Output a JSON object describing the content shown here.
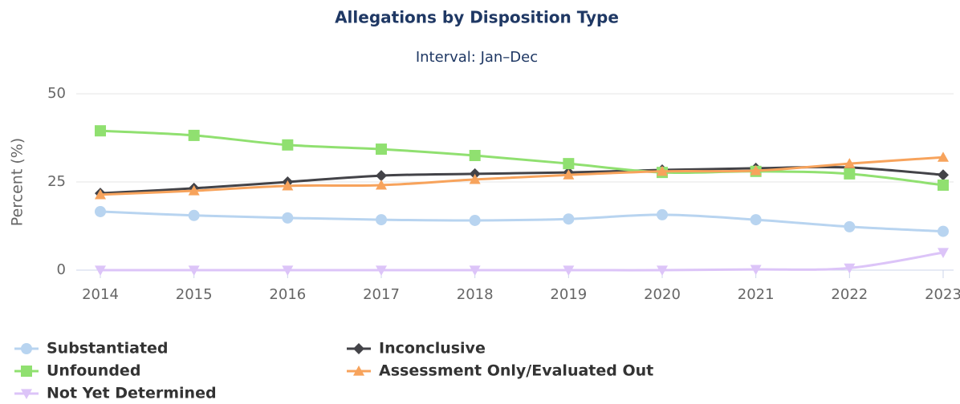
{
  "chart_data": {
    "type": "line",
    "title": "Allegations by Disposition Type",
    "subtitle": "Interval: Jan–Dec",
    "y_label": "Percent (%)",
    "categories": [
      "2014",
      "2015",
      "2016",
      "2017",
      "2018",
      "2019",
      "2020",
      "2021",
      "2022",
      "2023"
    ],
    "ylim": [
      0,
      50
    ],
    "yticks": [
      0,
      25,
      50
    ],
    "grid": true,
    "series": [
      {
        "name": "Substantiated",
        "color": "#b8d4f0",
        "marker": "circle",
        "values": [
          16.6,
          15.5,
          14.8,
          14.3,
          14.1,
          14.5,
          15.7,
          14.3,
          12.3,
          11.0
        ]
      },
      {
        "name": "Inconclusive",
        "color": "#434348",
        "marker": "diamond",
        "values": [
          21.8,
          23.2,
          25.0,
          26.8,
          27.3,
          27.7,
          28.4,
          28.9,
          29.1,
          27.0
        ]
      },
      {
        "name": "Unfounded",
        "color": "#90e070",
        "marker": "square",
        "values": [
          39.5,
          38.2,
          35.5,
          34.3,
          32.5,
          30.2,
          27.7,
          28.0,
          27.3,
          24.1
        ]
      },
      {
        "name": "Assessment Only/Evaluated Out",
        "color": "#f7a35c",
        "marker": "triangle",
        "values": [
          21.4,
          22.5,
          23.9,
          24.1,
          25.7,
          27.0,
          28.0,
          28.2,
          30.2,
          32.0
        ]
      },
      {
        "name": "Not Yet Determined",
        "color": "#dcc4f8",
        "marker": "triangle-down",
        "values": [
          0,
          0,
          0,
          0,
          0,
          0,
          0,
          0.2,
          0.6,
          5.0
        ]
      }
    ]
  }
}
